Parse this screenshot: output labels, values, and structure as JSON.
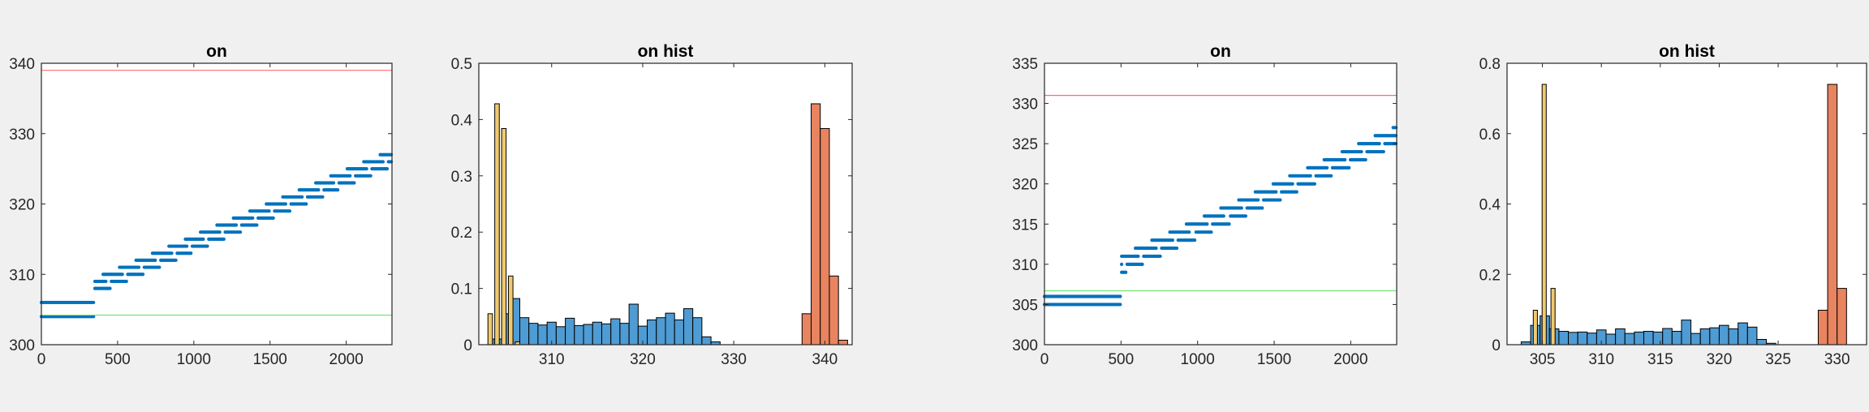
{
  "figure": {
    "background": "#f0f0f0",
    "axes_background": "#ffffff",
    "axis_color": "#262626"
  },
  "chart_data": [
    {
      "type": "scatter",
      "title": "on",
      "xlabel": "",
      "ylabel": "",
      "xlim": [
        0,
        2300
      ],
      "ylim": [
        300,
        340
      ],
      "xticks": [
        0,
        500,
        1000,
        1500,
        2000
      ],
      "xtick_labels": [
        "0",
        "500",
        "1000",
        "1500",
        "2000"
      ],
      "yticks": [
        300,
        310,
        320,
        330,
        340
      ],
      "ytick_labels": [
        "300",
        "310",
        "320",
        "330",
        "340"
      ],
      "grid": false,
      "series": [
        {
          "kind": "points",
          "color": "#0072bd",
          "trend": {
            "start": [
              0,
              305.5
            ],
            "end": [
              2300,
              327
            ],
            "spread": 1.5,
            "base_until": 350,
            "base_y": 305.5
          }
        },
        {
          "kind": "hline",
          "y": 339,
          "color": "#ff6b6b"
        },
        {
          "kind": "hline",
          "y": 304.2,
          "color": "#6be36b"
        }
      ]
    },
    {
      "type": "bar",
      "title": "on hist",
      "xlabel": "",
      "ylabel": "",
      "xlim": [
        302,
        343
      ],
      "ylim": [
        0,
        0.5
      ],
      "xticks": [
        310,
        320,
        330,
        340
      ],
      "xtick_labels": [
        "310",
        "320",
        "330",
        "340"
      ],
      "yticks": [
        0,
        0.1,
        0.2,
        0.3,
        0.4,
        0.5
      ],
      "ytick_labels": [
        "0",
        "0.1",
        "0.2",
        "0.3",
        "0.4",
        "0.5"
      ],
      "grid": false,
      "series": [
        {
          "color": "#4f9bd3",
          "bin_width": 1,
          "bins": [
            [
              304,
              0.01
            ],
            [
              305,
              0.055
            ],
            [
              306,
              0.082
            ],
            [
              307,
              0.048
            ],
            [
              308,
              0.038
            ],
            [
              309,
              0.035
            ],
            [
              310,
              0.04
            ],
            [
              311,
              0.032
            ],
            [
              312,
              0.047
            ],
            [
              313,
              0.034
            ],
            [
              314,
              0.036
            ],
            [
              315,
              0.04
            ],
            [
              316,
              0.037
            ],
            [
              317,
              0.046
            ],
            [
              318,
              0.038
            ],
            [
              319,
              0.072
            ],
            [
              320,
              0.033
            ],
            [
              321,
              0.044
            ],
            [
              322,
              0.048
            ],
            [
              323,
              0.056
            ],
            [
              324,
              0.044
            ],
            [
              325,
              0.064
            ],
            [
              326,
              0.048
            ],
            [
              327,
              0.014
            ],
            [
              328,
              0.005
            ]
          ]
        },
        {
          "color": "#f0c96f",
          "bin_width": 0.5,
          "bins": [
            [
              303.25,
              0.055
            ],
            [
              304,
              0.428
            ],
            [
              304.75,
              0.384
            ],
            [
              305.5,
              0.122
            ],
            [
              306.25,
              0.005
            ]
          ]
        },
        {
          "color": "#e8845f",
          "bin_width": 1,
          "bins": [
            [
              338,
              0.055
            ],
            [
              339,
              0.428
            ],
            [
              340,
              0.384
            ],
            [
              341,
              0.122
            ],
            [
              342,
              0.008
            ]
          ]
        }
      ]
    },
    {
      "type": "scatter",
      "title": "on",
      "xlabel": "",
      "ylabel": "",
      "xlim": [
        0,
        2300
      ],
      "ylim": [
        300,
        335
      ],
      "xticks": [
        0,
        500,
        1000,
        1500,
        2000
      ],
      "xtick_labels": [
        "0",
        "500",
        "1000",
        "1500",
        "2000"
      ],
      "yticks": [
        300,
        305,
        310,
        315,
        320,
        325,
        330,
        335
      ],
      "ytick_labels": [
        "300",
        "305",
        "310",
        "315",
        "320",
        "325",
        "330",
        "335"
      ],
      "grid": false,
      "series": [
        {
          "kind": "points",
          "color": "#0072bd",
          "trend": {
            "start": [
              0,
              306
            ],
            "end": [
              2300,
              326.5
            ],
            "spread": 1.5,
            "base_until": 500,
            "base_y": 306
          }
        },
        {
          "kind": "hline",
          "y": 331,
          "color": "#ff6b6b"
        },
        {
          "kind": "hline",
          "y": 306.7,
          "color": "#6be36b"
        }
      ]
    },
    {
      "type": "bar",
      "title": "on hist",
      "xlabel": "",
      "ylabel": "",
      "xlim": [
        302,
        332.5
      ],
      "ylim": [
        0,
        0.8
      ],
      "xticks": [
        305,
        310,
        315,
        320,
        325,
        330
      ],
      "xtick_labels": [
        "305",
        "310",
        "315",
        "320",
        "325",
        "330"
      ],
      "yticks": [
        0,
        0.2,
        0.4,
        0.6,
        0.8
      ],
      "ytick_labels": [
        "0",
        "0.2",
        "0.4",
        "0.6",
        "0.8"
      ],
      "grid": false,
      "series": [
        {
          "color": "#4f9bd3",
          "bin_width": 0.8,
          "bins": [
            [
              303.6,
              0.008
            ],
            [
              304.4,
              0.055
            ],
            [
              305.2,
              0.082
            ],
            [
              306,
              0.045
            ],
            [
              306.8,
              0.038
            ],
            [
              307.6,
              0.035
            ],
            [
              308.4,
              0.036
            ],
            [
              309.2,
              0.033
            ],
            [
              310,
              0.042
            ],
            [
              310.8,
              0.03
            ],
            [
              311.6,
              0.045
            ],
            [
              312.4,
              0.032
            ],
            [
              313.2,
              0.036
            ],
            [
              314,
              0.038
            ],
            [
              314.8,
              0.036
            ],
            [
              315.6,
              0.046
            ],
            [
              316.4,
              0.038
            ],
            [
              317.2,
              0.07
            ],
            [
              318,
              0.032
            ],
            [
              318.8,
              0.045
            ],
            [
              319.6,
              0.048
            ],
            [
              320.4,
              0.055
            ],
            [
              321.2,
              0.045
            ],
            [
              322,
              0.062
            ],
            [
              322.8,
              0.05
            ],
            [
              323.6,
              0.015
            ],
            [
              324.4,
              0.004
            ]
          ]
        },
        {
          "color": "#f0c96f",
          "bin_width": 0.35,
          "bins": [
            [
              304.4,
              0.098
            ],
            [
              305.15,
              0.74
            ],
            [
              305.9,
              0.16
            ]
          ]
        },
        {
          "color": "#e8845f",
          "bin_width": 0.8,
          "bins": [
            [
              328.8,
              0.098
            ],
            [
              329.6,
              0.74
            ],
            [
              330.4,
              0.16
            ]
          ]
        }
      ]
    }
  ]
}
